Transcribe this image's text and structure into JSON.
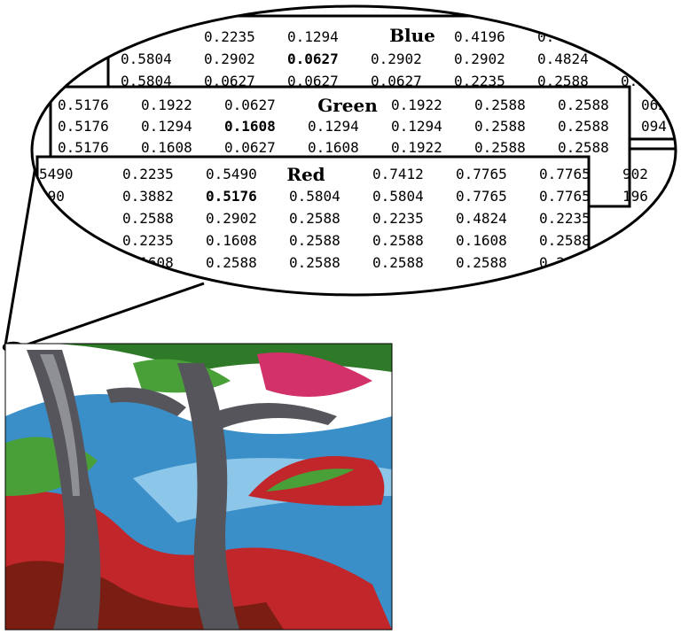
{
  "figure": {
    "title": "",
    "image_alt_semantic": "painting-of-trees-by-water"
  },
  "planes": [
    {
      "id": "blue",
      "title": "Blue",
      "rows": [
        [
          "",
          "0.2235",
          "0.1294",
          "",
          "0.4196",
          "0."
        ],
        [
          "0.5804",
          "0.2902",
          "0.0627",
          "0.2902",
          "0.2902",
          "0.4824"
        ],
        [
          "0.5804",
          "0.0627",
          "0.0627",
          "0.0627",
          "0.2235",
          "0.2588",
          "0.2"
        ]
      ],
      "highlight": {
        "row": 1,
        "col": 2
      }
    },
    {
      "id": "green",
      "title": "Green",
      "rows": [
        [
          "0.5176",
          "0.1922",
          "0.0627",
          "",
          "0.1922",
          "0.2588",
          "0.2588",
          "062"
        ],
        [
          "0.5176",
          "0.1294",
          "0.1608",
          "0.1294",
          "0.1294",
          "0.2588",
          "0.2588",
          "094"
        ],
        [
          "0.5176",
          "0.1608",
          "0.0627",
          "0.1608",
          "0.1922",
          "0.2588",
          "0.2588"
        ]
      ],
      "highlight": {
        "row": 1,
        "col": 2
      }
    },
    {
      "id": "red",
      "title": "Red",
      "rows": [
        [
          "5490",
          "0.2235",
          "0.5490",
          "",
          "0.7412",
          "0.7765",
          "0.7765",
          "902"
        ],
        [
          "490",
          "0.3882",
          "0.5176",
          "0.5804",
          "0.5804",
          "0.7765",
          "0.7765",
          "196"
        ],
        [
          "0",
          "0.2588",
          "0.2902",
          "0.2588",
          "0.2235",
          "0.4824",
          "0.2235"
        ],
        [
          ".",
          "0.2235",
          "0.1608",
          "0.2588",
          "0.2588",
          "0.1608",
          "0.2588"
        ],
        [
          "88",
          "0.1608",
          "0.2588",
          "0.2588",
          "0.2588",
          "0.2588",
          "0.2"
        ]
      ],
      "highlight": {
        "row": 1,
        "col": 2
      }
    }
  ],
  "colors": {
    "outline": "#000000",
    "background": "#ffffff",
    "sky": "#ffffff",
    "water": "#3b8fc8",
    "water_light": "#8cc6e8",
    "trunk": "#55555b",
    "trunk_light": "#8f9096",
    "foliage": "#4aa038",
    "foliage_dark": "#2f7a28",
    "hill_red": "#c0262a",
    "hill_pink": "#d2316a",
    "ground_dark": "#7a1e14"
  }
}
